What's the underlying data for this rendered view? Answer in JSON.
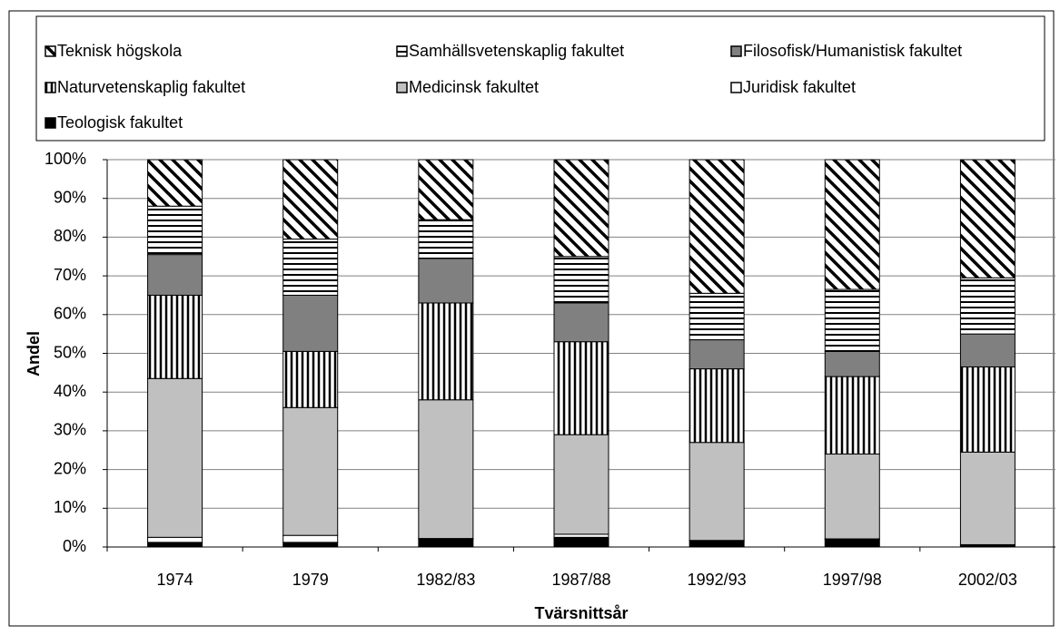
{
  "chart_data": {
    "type": "stacked_bar",
    "x_label": "Tvärsnittsår",
    "y_label": "Andel",
    "categories": [
      "1974",
      "1979",
      "1982/83",
      "1987/88",
      "1992/93",
      "1997/98",
      "2002/03"
    ],
    "series": [
      {
        "name": "Teologisk fakultet",
        "color": "#000000",
        "pattern": "solid",
        "values": [
          1.2,
          1.2,
          2,
          2.5,
          1.5,
          2,
          0.5
        ]
      },
      {
        "name": "Juridisk fakultet",
        "color": "#ffffff",
        "pattern": "solid",
        "values": [
          1.3,
          1.8,
          0.2,
          0.8,
          0.2,
          0.1,
          0.1
        ]
      },
      {
        "name": "Medicinsk fakultet",
        "color": "#c0c0c0",
        "pattern": "solid",
        "values": [
          41,
          33,
          35.8,
          25.7,
          25.3,
          21.9,
          23.9
        ]
      },
      {
        "name": "Naturvetenskaplig fakultet",
        "color": "#000000",
        "pattern": "vertical",
        "values": [
          21.5,
          14.5,
          25,
          24,
          19,
          20,
          22
        ]
      },
      {
        "name": "Filosofisk/Humanistisk fakultet",
        "color": "#808080",
        "pattern": "solid",
        "values": [
          10.5,
          14.5,
          11.5,
          10,
          7.5,
          6.5,
          8.5
        ]
      },
      {
        "name": "Samhällsvetenskaplig fakultet",
        "color": "#000000",
        "pattern": "horizontal",
        "values": [
          12.5,
          14.5,
          10,
          12,
          12,
          16,
          14.5
        ]
      },
      {
        "name": "Teknisk högskola",
        "color": "#000000",
        "pattern": "diagonal",
        "values": [
          12,
          20.5,
          15.5,
          25,
          34.5,
          33.5,
          30.5
        ]
      }
    ],
    "ylim": [
      0,
      100
    ],
    "yticks": [
      {
        "value": 0,
        "label": "0%"
      },
      {
        "value": 10,
        "label": "10%"
      },
      {
        "value": 20,
        "label": "20%"
      },
      {
        "value": 30,
        "label": "30%"
      },
      {
        "value": 40,
        "label": "40%"
      },
      {
        "value": 50,
        "label": "50%"
      },
      {
        "value": 60,
        "label": "60%"
      },
      {
        "value": 70,
        "label": "70%"
      },
      {
        "value": 80,
        "label": "80%"
      },
      {
        "value": 90,
        "label": "90%"
      },
      {
        "value": 100,
        "label": "100%"
      }
    ],
    "grid": true,
    "legend": "top"
  }
}
